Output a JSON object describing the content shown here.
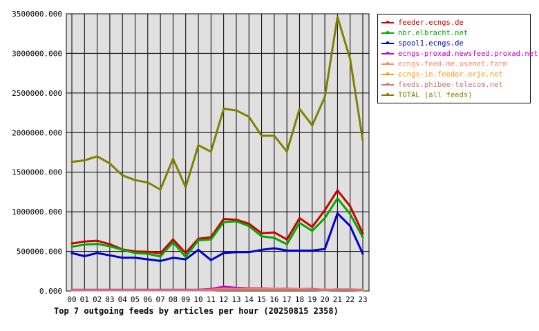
{
  "chart_data": {
    "type": "line",
    "title": "Top 7 outgoing feeds by articles per hour (20250815 2358)",
    "ylim": [
      0,
      3500000
    ],
    "yticks": [
      "0.000",
      "500000.000",
      "1000000.000",
      "1500000.000",
      "2000000.000",
      "2500000.000",
      "3000000.000",
      "3500000.000"
    ],
    "ytick_values": [
      0,
      500000,
      1000000,
      1500000,
      2000000,
      2500000,
      3000000,
      3500000
    ],
    "categories": [
      "00",
      "01",
      "02",
      "03",
      "04",
      "05",
      "06",
      "07",
      "08",
      "09",
      "10",
      "11",
      "12",
      "13",
      "14",
      "15",
      "16",
      "17",
      "18",
      "19",
      "20",
      "21",
      "22",
      "23"
    ],
    "grid": true,
    "legend_position": "top-right",
    "series": [
      {
        "name": "feeder.ecngs.de",
        "color": "#cc0000",
        "values": [
          600000,
          625000,
          635000,
          590000,
          525000,
          500000,
          495000,
          475000,
          650000,
          480000,
          660000,
          680000,
          910000,
          900000,
          850000,
          730000,
          740000,
          650000,
          920000,
          810000,
          1020000,
          1270000,
          1070000,
          730000
        ]
      },
      {
        "name": "nbr.elbracht.net",
        "color": "#00aa00",
        "values": [
          560000,
          585000,
          595000,
          565000,
          520000,
          480000,
          470000,
          435000,
          615000,
          430000,
          640000,
          650000,
          870000,
          880000,
          820000,
          690000,
          670000,
          590000,
          860000,
          760000,
          920000,
          1170000,
          970000,
          680000
        ]
      },
      {
        "name": "spool1.ecngs.de",
        "color": "#0000cc",
        "values": [
          480000,
          440000,
          480000,
          450000,
          420000,
          420000,
          400000,
          380000,
          420000,
          400000,
          520000,
          390000,
          480000,
          490000,
          490000,
          520000,
          540000,
          510000,
          510000,
          510000,
          530000,
          980000,
          820000,
          470000
        ]
      },
      {
        "name": "ecngs-proxad.newsfeed.proxad.net",
        "color": "#cc00cc",
        "values": [
          15000,
          15000,
          15000,
          15000,
          15000,
          15000,
          15000,
          15000,
          15000,
          15000,
          15000,
          25000,
          55000,
          40000,
          35000,
          35000,
          30000,
          30000,
          25000,
          25000,
          15000,
          20000,
          20000,
          15000
        ]
      },
      {
        "name": "ecngs-feed-me.usenet.farm",
        "color": "#ff8866",
        "values": [
          10000,
          10000,
          10000,
          10000,
          10000,
          10000,
          10000,
          10000,
          10000,
          10000,
          10000,
          15000,
          30000,
          25000,
          30000,
          30000,
          30000,
          25000,
          25000,
          20000,
          15000,
          20000,
          20000,
          15000
        ]
      },
      {
        "name": "ecngs-in.feeder.erje.net",
        "color": "#ff9900",
        "values": [
          10000,
          10000,
          10000,
          10000,
          10000,
          10000,
          10000,
          10000,
          10000,
          10000,
          10000,
          10000,
          15000,
          15000,
          15000,
          15000,
          15000,
          15000,
          15000,
          15000,
          10000,
          15000,
          15000,
          10000
        ]
      },
      {
        "name": "feeds.phibee-telecom.net",
        "color": "#cc7777",
        "values": [
          10000,
          10000,
          10000,
          10000,
          10000,
          10000,
          10000,
          10000,
          10000,
          10000,
          10000,
          10000,
          15000,
          15000,
          15000,
          15000,
          15000,
          15000,
          15000,
          15000,
          10000,
          15000,
          15000,
          10000
        ]
      },
      {
        "name": "TOTAL (all feeds)",
        "color": "#808000",
        "values": [
          1630000,
          1650000,
          1700000,
          1610000,
          1460000,
          1400000,
          1370000,
          1280000,
          1670000,
          1310000,
          1840000,
          1760000,
          2300000,
          2280000,
          2200000,
          1960000,
          1960000,
          1760000,
          2300000,
          2090000,
          2450000,
          3460000,
          2930000,
          1900000
        ]
      }
    ]
  }
}
